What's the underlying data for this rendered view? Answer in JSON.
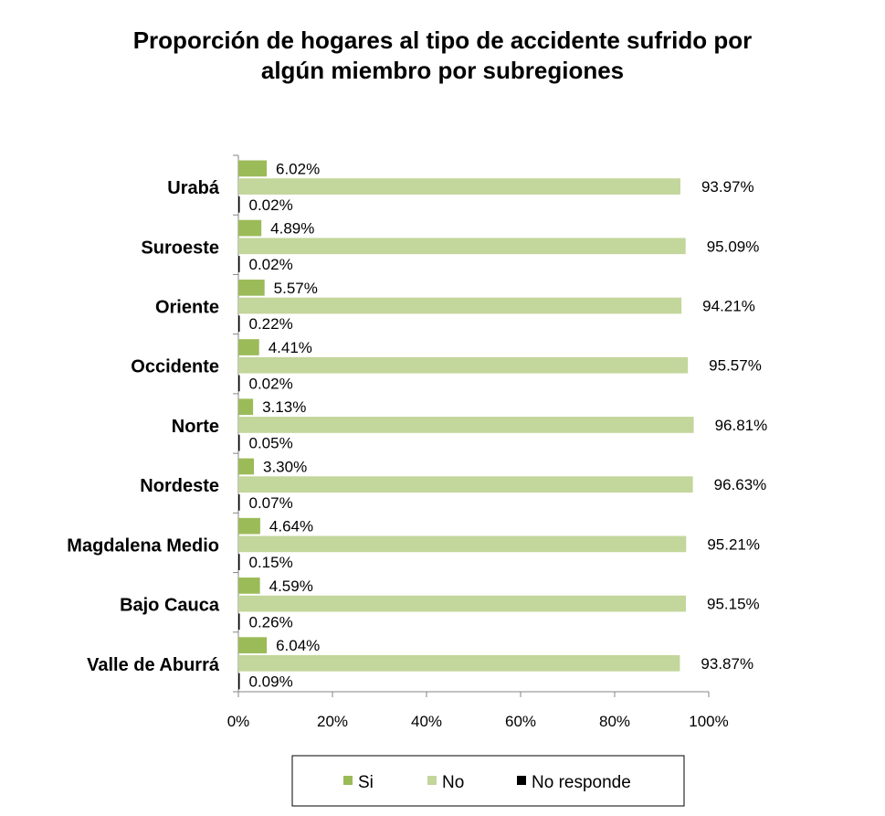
{
  "chart_data": {
    "type": "bar",
    "orientation": "horizontal",
    "title_lines": [
      "Proporción de hogares al tipo de accidente sufrido por",
      "algún miembro por subregiones"
    ],
    "categories": [
      "Urabá",
      "Suroeste",
      "Oriente",
      "Occidente",
      "Norte",
      "Nordeste",
      "Magdalena Medio",
      "Bajo Cauca",
      "Valle de Aburrá"
    ],
    "series": [
      {
        "name": "Si",
        "color": "#9bbb59",
        "values": [
          6.02,
          4.89,
          5.57,
          4.41,
          3.13,
          3.3,
          4.64,
          4.59,
          6.04
        ],
        "labels": [
          "6.02%",
          "4.89%",
          "5.57%",
          "4.41%",
          "3.13%",
          "3.30%",
          "4.64%",
          "4.59%",
          "6.04%"
        ]
      },
      {
        "name": "No",
        "color": "#c3d69b",
        "values": [
          93.97,
          95.09,
          94.21,
          95.57,
          96.81,
          96.63,
          95.21,
          95.15,
          93.87
        ],
        "labels": [
          "93.97%",
          "95.09%",
          "94.21%",
          "95.57%",
          "96.81%",
          "96.63%",
          "95.21%",
          "95.15%",
          "93.87%"
        ]
      },
      {
        "name": "No responde",
        "color": "#000000",
        "values": [
          0.02,
          0.02,
          0.22,
          0.02,
          0.05,
          0.07,
          0.15,
          0.26,
          0.09
        ],
        "labels": [
          "0.02%",
          "0.02%",
          "0.22%",
          "0.02%",
          "0.05%",
          "0.07%",
          "0.15%",
          "0.26%",
          "0.09%"
        ]
      }
    ],
    "xlim": [
      0,
      100
    ],
    "xticks": [
      0,
      20,
      40,
      60,
      80,
      100
    ],
    "xtick_labels": [
      "0%",
      "20%",
      "40%",
      "60%",
      "80%",
      "100%"
    ],
    "grid": false,
    "legend_position": "bottom"
  }
}
